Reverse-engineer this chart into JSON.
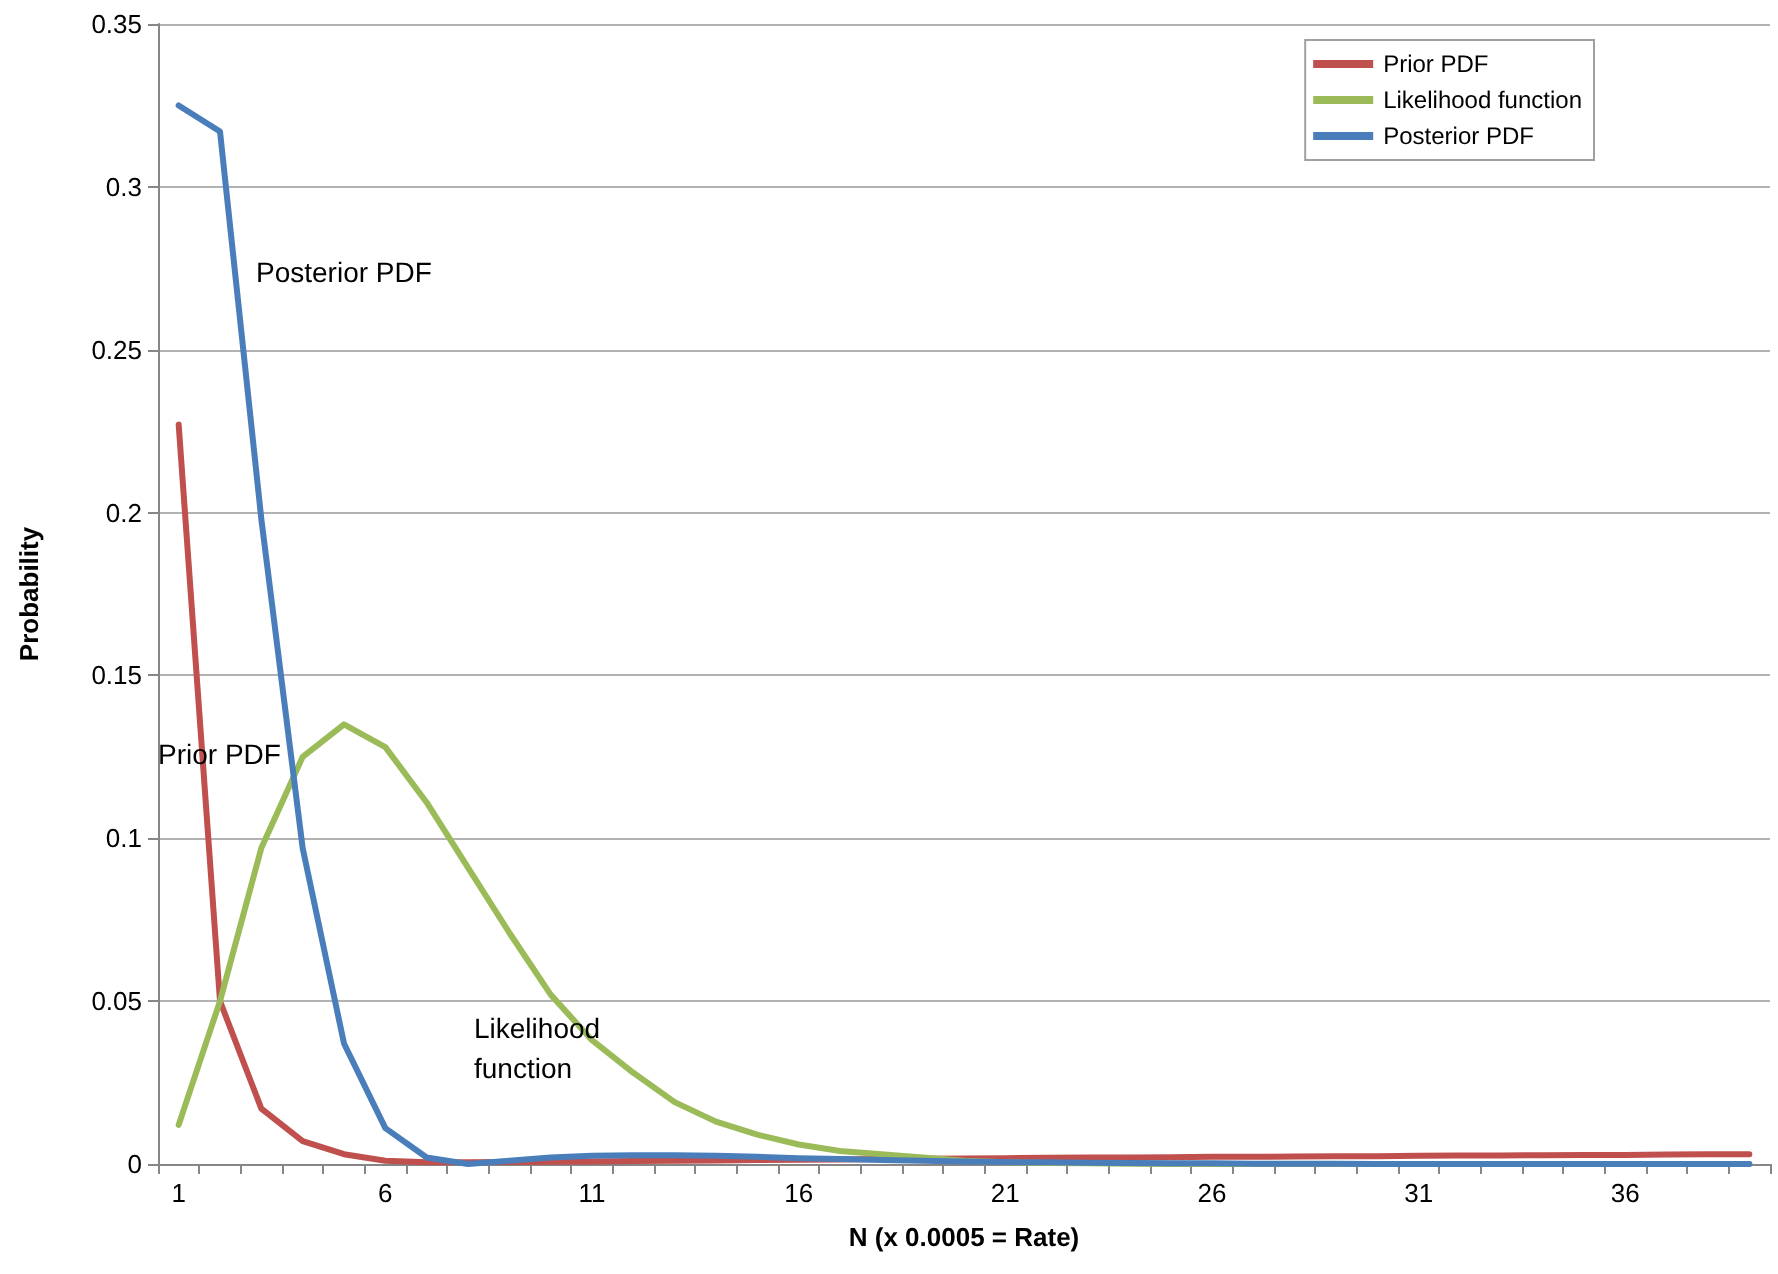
{
  "chart_data": {
    "type": "line",
    "xlabel": "N (x 0.0005 = Rate)",
    "ylabel": "Probability",
    "categories": [
      "1",
      null,
      null,
      null,
      null,
      "6",
      null,
      null,
      null,
      null,
      "11",
      null,
      null,
      null,
      null,
      "16",
      null,
      null,
      null,
      null,
      "21",
      null,
      null,
      null,
      null,
      "26",
      null,
      null,
      null,
      null,
      "31",
      null,
      null,
      null,
      null,
      "36",
      null,
      null,
      null
    ],
    "series": [
      {
        "name": "Prior PDF",
        "color": "#c0504d",
        "values": [
          0.227,
          0.05,
          0.017,
          0.007,
          0.003,
          0.001,
          0.0005,
          0.0005,
          0.0006,
          0.0007,
          0.0008,
          0.0009,
          0.001,
          0.0011,
          0.0012,
          0.0013,
          0.0014,
          0.0015,
          0.0016,
          0.0017,
          0.0018,
          0.0019,
          0.002,
          0.002,
          0.0021,
          0.0022,
          0.0022,
          0.0023,
          0.0024,
          0.0024,
          0.0025,
          0.0026,
          0.0026,
          0.0027,
          0.0028,
          0.0028,
          0.0029,
          0.003,
          0.003
        ]
      },
      {
        "name": "Likelihood function",
        "color": "#9bbb59",
        "values": [
          0.012,
          0.05,
          0.097,
          0.125,
          0.135,
          0.128,
          0.111,
          0.091,
          0.071,
          0.052,
          0.038,
          0.028,
          0.019,
          0.013,
          0.009,
          0.006,
          0.004,
          0.003,
          0.002,
          0.001,
          0.0005,
          0.0003,
          0.0002,
          0.0001,
          0,
          0,
          0,
          0,
          0,
          0,
          0,
          0,
          0,
          0,
          0,
          0,
          0,
          0,
          0
        ]
      },
      {
        "name": "Posterior PDF",
        "color": "#4a7ebb",
        "values": [
          0.325,
          0.317,
          0.198,
          0.097,
          0.037,
          0.011,
          0.002,
          0,
          0.001,
          0.002,
          0.0025,
          0.0027,
          0.0027,
          0.0025,
          0.0022,
          0.0018,
          0.0015,
          0.0012,
          0.001,
          0.0008,
          0.0006,
          0.0005,
          0.0004,
          0.0003,
          0.0002,
          0.0002,
          0.0001,
          0.0001,
          0.0001,
          0,
          0,
          0,
          0,
          0,
          0,
          0,
          0,
          0,
          0
        ]
      }
    ],
    "ylim": [
      0,
      0.35
    ],
    "yticks": [
      0,
      0.05,
      0.1,
      0.15,
      0.2,
      0.25,
      0.3,
      0.35
    ],
    "grid": "y",
    "legend": "top right",
    "marker": "none",
    "line_style": "solid",
    "annotations": [
      "Posterior PDF",
      "Prior PDF",
      "Likelihood\nfunction"
    ]
  }
}
